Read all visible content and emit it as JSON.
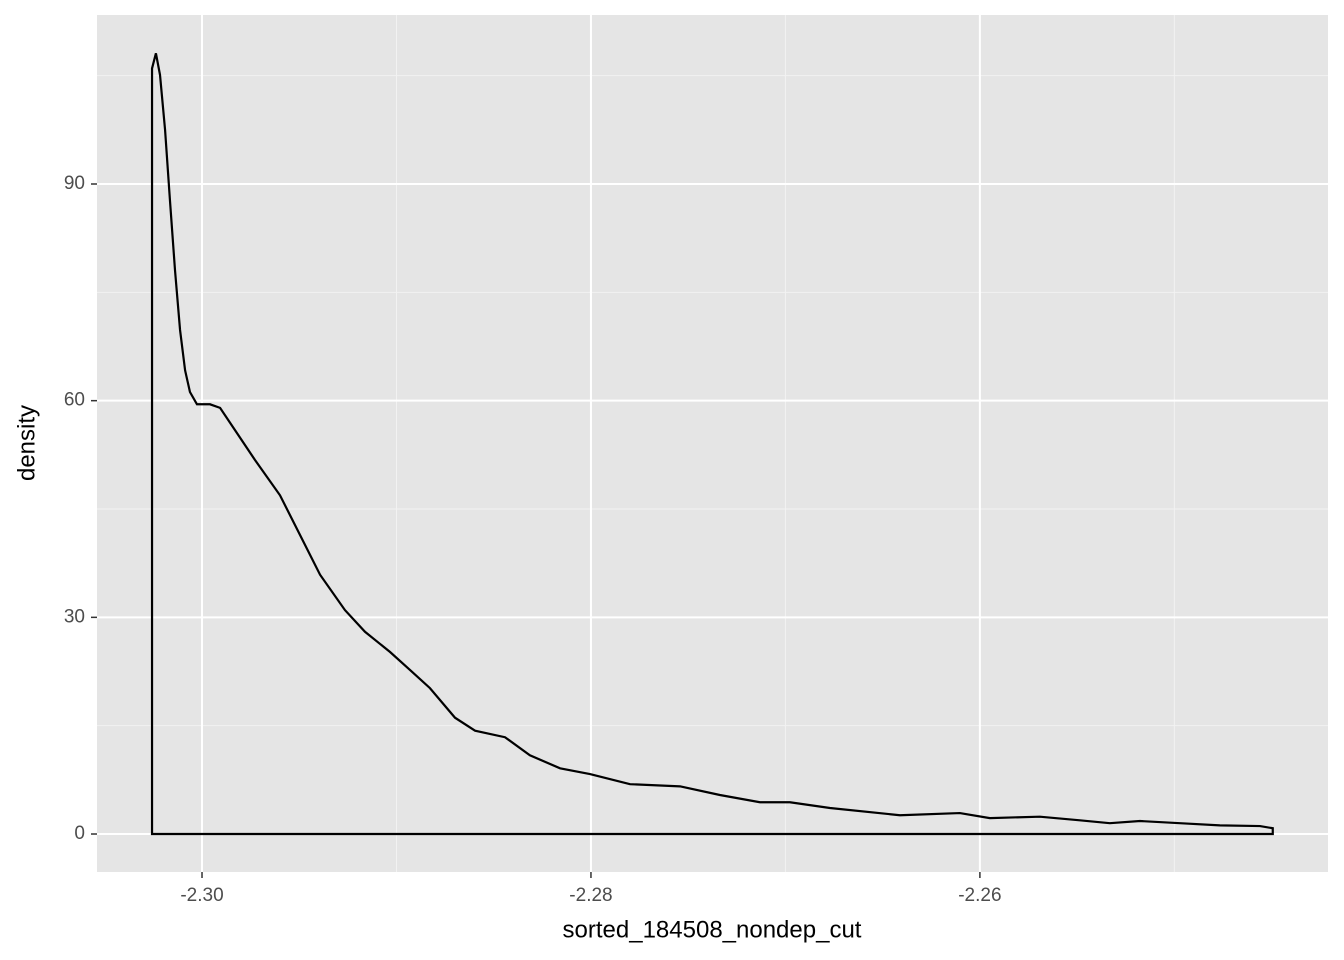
{
  "chart_data": {
    "type": "density",
    "x_label": "sorted_184508_nondep_cut",
    "y_label": "density",
    "x": [
      -2.30257,
      -2.30257,
      -2.30237,
      -2.30216,
      -2.3019,
      -2.30165,
      -2.30139,
      -2.30113,
      -2.30087,
      -2.30062,
      -2.30026,
      -2.29959,
      -2.29907,
      -2.2983,
      -2.29728,
      -2.29599,
      -2.29496,
      -2.29393,
      -2.29265,
      -2.29162,
      -2.29033,
      -2.2893,
      -2.28828,
      -2.28699,
      -2.28596,
      -2.28442,
      -2.28314,
      -2.28159,
      -2.28005,
      -2.27799,
      -2.27542,
      -2.27337,
      -2.27131,
      -2.26977,
      -2.26771,
      -2.26411,
      -2.26103,
      -2.25949,
      -2.25692,
      -2.25486,
      -2.25332,
      -2.25177,
      -2.24972,
      -2.24766,
      -2.2456,
      -2.24494,
      -2.24494
    ],
    "values": [
      0,
      106,
      108.1,
      105.1,
      97.5,
      87.8,
      78.1,
      69.8,
      64.2,
      61.2,
      59.5,
      59.5,
      59.0,
      55.9,
      51.8,
      46.9,
      41.4,
      35.9,
      31.0,
      28.0,
      25.2,
      22.7,
      20.2,
      16.1,
      14.3,
      13.4,
      10.9,
      9.1,
      8.3,
      6.9,
      6.6,
      5.4,
      4.4,
      4.4,
      3.6,
      2.6,
      2.9,
      2.2,
      2.4,
      1.9,
      1.5,
      1.8,
      1.5,
      1.2,
      1.1,
      0.8,
      0
    ],
    "color": "#000000",
    "xlim": [
      -2.3054,
      -2.2421
    ],
    "ylim": [
      -5.26,
      113.4
    ],
    "xticks": [
      {
        "value": -2.3,
        "label": "-2.30"
      },
      {
        "value": -2.28,
        "label": "-2.28"
      },
      {
        "value": -2.26,
        "label": "-2.26"
      }
    ],
    "yticks": [
      0,
      30,
      60,
      90
    ],
    "x_minor_grid": [
      -2.29,
      -2.27,
      -2.25
    ],
    "y_minor_grid": [
      15,
      45,
      75,
      105
    ],
    "grid": true
  }
}
